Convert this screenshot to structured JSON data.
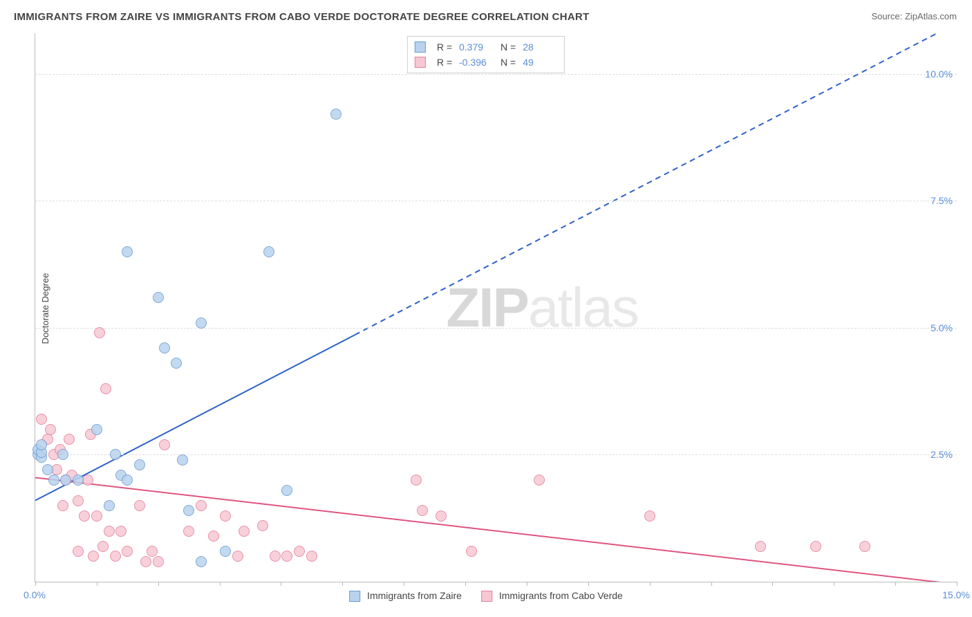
{
  "title": "IMMIGRANTS FROM ZAIRE VS IMMIGRANTS FROM CABO VERDE DOCTORATE DEGREE CORRELATION CHART",
  "source_label": "Source: ",
  "source_name": "ZipAtlas.com",
  "y_axis_label": "Doctorate Degree",
  "watermark": {
    "part1": "ZIP",
    "part2": "atlas"
  },
  "plot": {
    "background_color": "#ffffff",
    "axis_color": "#bbbbbb",
    "grid_color": "#dddddd",
    "x_range": [
      0,
      15
    ],
    "y_range": [
      0,
      10.8
    ],
    "x_ticks": [
      0,
      1,
      2,
      3,
      4,
      5,
      6,
      7,
      8,
      9,
      10,
      11,
      12,
      13,
      14,
      15
    ],
    "x_tick_labels": [
      {
        "val": 0,
        "text": "0.0%"
      },
      {
        "val": 15,
        "text": "15.0%"
      }
    ],
    "y_ticks": [
      {
        "val": 2.5,
        "text": "2.5%"
      },
      {
        "val": 5.0,
        "text": "5.0%"
      },
      {
        "val": 7.5,
        "text": "7.5%"
      },
      {
        "val": 10.0,
        "text": "10.0%"
      }
    ]
  },
  "series": {
    "zaire": {
      "label": "Immigrants from Zaire",
      "fill": "#b9d3ee",
      "stroke": "#6a9bd1",
      "line_color": "#2e62c9",
      "point_radius": 8,
      "r_label": "R =",
      "r_value": "0.379",
      "n_label": "N =",
      "n_value": "28",
      "trend": {
        "x1": 0,
        "y1": 1.6,
        "x2": 15,
        "y2": 11.0,
        "solid_until_x": 5.2
      },
      "points": [
        [
          0.05,
          2.5
        ],
        [
          0.05,
          2.6
        ],
        [
          0.1,
          2.45
        ],
        [
          0.1,
          2.55
        ],
        [
          0.1,
          2.7
        ],
        [
          0.2,
          2.2
        ],
        [
          0.3,
          2.0
        ],
        [
          0.45,
          2.5
        ],
        [
          0.5,
          2.0
        ],
        [
          0.7,
          2.0
        ],
        [
          1.0,
          3.0
        ],
        [
          1.2,
          1.5
        ],
        [
          1.3,
          2.5
        ],
        [
          1.4,
          2.1
        ],
        [
          1.5,
          2.0
        ],
        [
          1.5,
          6.5
        ],
        [
          1.7,
          2.3
        ],
        [
          2.0,
          5.6
        ],
        [
          2.1,
          4.6
        ],
        [
          2.3,
          4.3
        ],
        [
          2.4,
          2.4
        ],
        [
          2.5,
          1.4
        ],
        [
          2.7,
          5.1
        ],
        [
          2.7,
          0.4
        ],
        [
          3.1,
          0.6
        ],
        [
          3.8,
          6.5
        ],
        [
          4.1,
          1.8
        ],
        [
          4.9,
          9.2
        ]
      ]
    },
    "cabo_verde": {
      "label": "Immigrants from Cabo Verde",
      "fill": "#f7c8d4",
      "stroke": "#e27f9a",
      "line_color": "#e0547e",
      "point_radius": 8,
      "r_label": "R =",
      "r_value": "-0.396",
      "n_label": "N =",
      "n_value": "49",
      "trend": {
        "x1": 0,
        "y1": 2.05,
        "x2": 15,
        "y2": -0.05,
        "solid_until_x": 15
      },
      "points": [
        [
          0.1,
          3.2
        ],
        [
          0.2,
          2.8
        ],
        [
          0.25,
          3.0
        ],
        [
          0.3,
          2.5
        ],
        [
          0.35,
          2.2
        ],
        [
          0.4,
          2.6
        ],
        [
          0.45,
          1.5
        ],
        [
          0.5,
          2.0
        ],
        [
          0.55,
          2.8
        ],
        [
          0.6,
          2.1
        ],
        [
          0.7,
          1.6
        ],
        [
          0.7,
          0.6
        ],
        [
          0.8,
          1.3
        ],
        [
          0.85,
          2.0
        ],
        [
          0.9,
          2.9
        ],
        [
          0.95,
          0.5
        ],
        [
          1.0,
          1.3
        ],
        [
          1.05,
          4.9
        ],
        [
          1.1,
          0.7
        ],
        [
          1.15,
          3.8
        ],
        [
          1.2,
          1.0
        ],
        [
          1.3,
          0.5
        ],
        [
          1.4,
          1.0
        ],
        [
          1.5,
          0.6
        ],
        [
          1.7,
          1.5
        ],
        [
          1.8,
          0.4
        ],
        [
          1.9,
          0.6
        ],
        [
          2.0,
          0.4
        ],
        [
          2.1,
          2.7
        ],
        [
          2.5,
          1.0
        ],
        [
          2.7,
          1.5
        ],
        [
          2.9,
          0.9
        ],
        [
          3.1,
          1.3
        ],
        [
          3.3,
          0.5
        ],
        [
          3.4,
          1.0
        ],
        [
          3.7,
          1.1
        ],
        [
          3.9,
          0.5
        ],
        [
          4.1,
          0.5
        ],
        [
          4.3,
          0.6
        ],
        [
          4.5,
          0.5
        ],
        [
          6.2,
          2.0
        ],
        [
          6.3,
          1.4
        ],
        [
          6.6,
          1.3
        ],
        [
          7.1,
          0.6
        ],
        [
          8.2,
          2.0
        ],
        [
          10.0,
          1.3
        ],
        [
          11.8,
          0.7
        ],
        [
          12.7,
          0.7
        ],
        [
          13.5,
          0.7
        ]
      ]
    }
  },
  "legend_bottom": [
    "zaire",
    "cabo_verde"
  ]
}
